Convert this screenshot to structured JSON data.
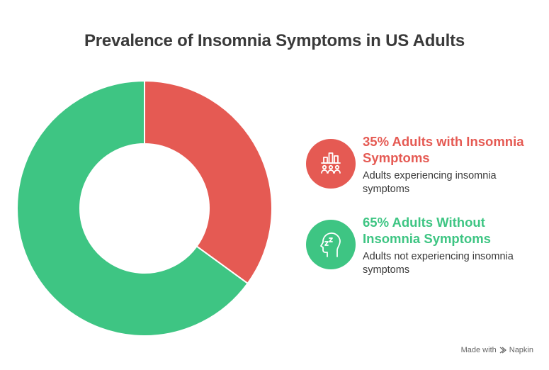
{
  "title": "Prevalence of Insomnia Symptoms in US Adults",
  "chart_data": {
    "type": "pie",
    "title": "Prevalence of Insomnia Symptoms in US Adults",
    "donut": true,
    "slices": [
      {
        "label": "Adults with Insomnia Symptoms",
        "value": 35,
        "heading": "35% Adults with Insomnia Symptoms",
        "description": "Adults experiencing insomnia symptoms",
        "color": "#e55a53",
        "icon": "group-bar-chart-icon"
      },
      {
        "label": "Adults Without Insomnia Symptoms",
        "value": 65,
        "heading": "65% Adults Without Insomnia Symptoms",
        "description": "Adults not experiencing insomnia symptoms",
        "color": "#3ec583",
        "icon": "sleeping-head-icon"
      }
    ],
    "legend_position": "right"
  },
  "footer": {
    "made_with": "Made with",
    "brand": "Napkin"
  }
}
